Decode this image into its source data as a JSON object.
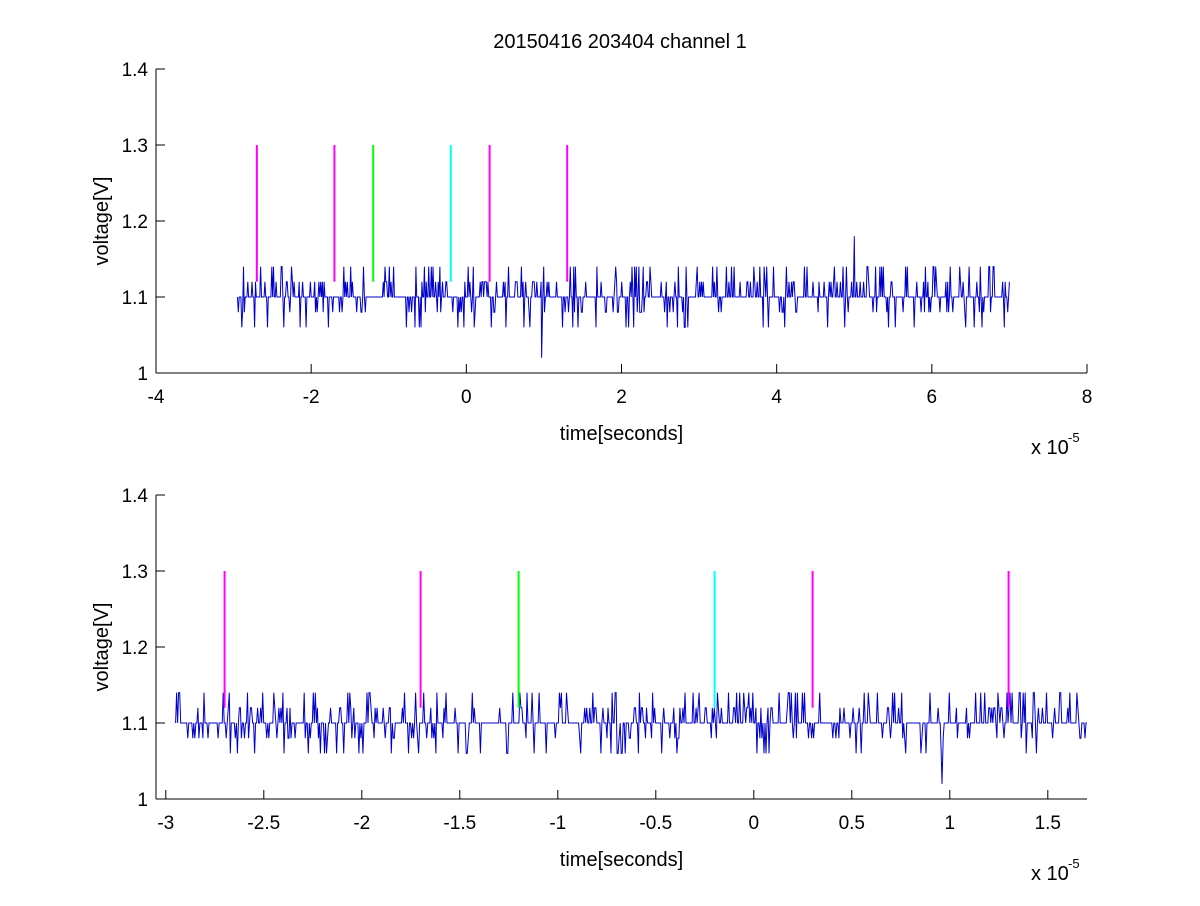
{
  "figure": {
    "title": "20150416 203404 channel 1"
  },
  "chart_data": [
    {
      "type": "line",
      "title": "20150416 203404 channel 1",
      "xlabel": "time[seconds]",
      "ylabel": "voltage[V]",
      "x_multiplier_label": "x 10",
      "x_multiplier_exponent": "-5",
      "xlim": [
        -4,
        8
      ],
      "ylim": [
        1,
        1.4
      ],
      "xticks": [
        -4,
        -2,
        0,
        2,
        4,
        6,
        8
      ],
      "xtick_labels": [
        "-4",
        "-2",
        "0",
        "2",
        "4",
        "6",
        "8"
      ],
      "yticks": [
        1,
        1.1,
        1.2,
        1.3,
        1.4
      ],
      "ytick_labels": [
        "1",
        "1.1",
        "1.2",
        "1.3",
        "1.4"
      ],
      "grid": false,
      "series": [
        {
          "color": "#0000cc",
          "x_range": [
            -2.95,
            7.0
          ],
          "baseline": 1.1,
          "levels": [
            1.06,
            1.08,
            1.1,
            1.12,
            1.14
          ],
          "outliers": [
            {
              "x": 0.97,
              "y": 1.02
            },
            {
              "x": 5.0,
              "y": 1.18
            }
          ]
        }
      ],
      "markers": [
        {
          "x": -2.7,
          "y_range": [
            1.12,
            1.3
          ],
          "color": "#ff00ff"
        },
        {
          "x": -1.7,
          "y_range": [
            1.12,
            1.3
          ],
          "color": "#ff00ff"
        },
        {
          "x": -1.2,
          "y_range": [
            1.12,
            1.3
          ],
          "color": "#00ff00"
        },
        {
          "x": -0.2,
          "y_range": [
            1.12,
            1.3
          ],
          "color": "#00ffff"
        },
        {
          "x": 0.3,
          "y_range": [
            1.12,
            1.3
          ],
          "color": "#ff00ff"
        },
        {
          "x": 1.3,
          "y_range": [
            1.12,
            1.3
          ],
          "color": "#ff00ff"
        }
      ]
    },
    {
      "type": "line",
      "title": "",
      "xlabel": "time[seconds]",
      "ylabel": "voltage[V]",
      "x_multiplier_label": "x 10",
      "x_multiplier_exponent": "-5",
      "xlim": [
        -3.05,
        1.7
      ],
      "ylim": [
        1,
        1.4
      ],
      "xticks": [
        -3,
        -2.5,
        -2,
        -1.5,
        -1,
        -0.5,
        0,
        0.5,
        1,
        1.5
      ],
      "xtick_labels": [
        "-3",
        "-2.5",
        "-2",
        "-1.5",
        "-1",
        "-0.5",
        "0",
        "0.5",
        "1",
        "1.5"
      ],
      "yticks": [
        1,
        1.1,
        1.2,
        1.3,
        1.4
      ],
      "ytick_labels": [
        "1",
        "1.1",
        "1.2",
        "1.3",
        "1.4"
      ],
      "grid": false,
      "series": [
        {
          "color": "#0000cc",
          "x_range": [
            -2.95,
            1.7
          ],
          "baseline": 1.1,
          "levels": [
            1.06,
            1.08,
            1.1,
            1.12,
            1.14
          ],
          "outliers": [
            {
              "x": 0.96,
              "y": 1.02
            }
          ]
        }
      ],
      "markers": [
        {
          "x": -2.7,
          "y_range": [
            1.12,
            1.3
          ],
          "color": "#ff00ff"
        },
        {
          "x": -1.7,
          "y_range": [
            1.12,
            1.3
          ],
          "color": "#ff00ff"
        },
        {
          "x": -1.2,
          "y_range": [
            1.12,
            1.3
          ],
          "color": "#00ff00"
        },
        {
          "x": -0.2,
          "y_range": [
            1.12,
            1.3
          ],
          "color": "#00ffff"
        },
        {
          "x": 0.3,
          "y_range": [
            1.12,
            1.3
          ],
          "color": "#ff00ff"
        },
        {
          "x": 1.3,
          "y_range": [
            1.12,
            1.3
          ],
          "color": "#ff00ff"
        }
      ]
    }
  ]
}
